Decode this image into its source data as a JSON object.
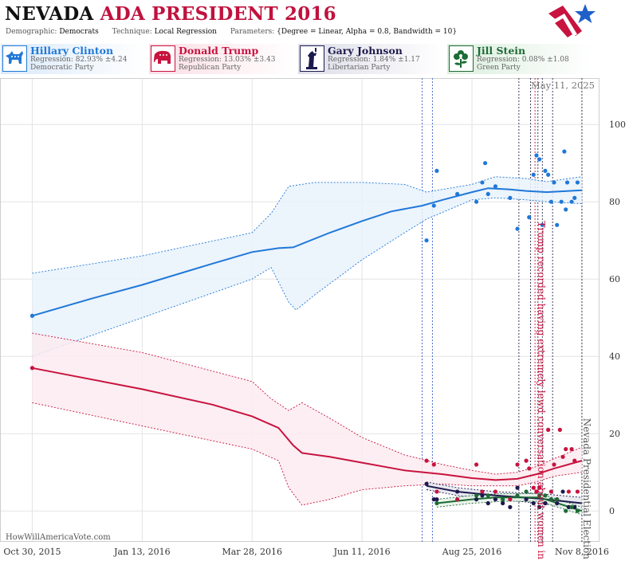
{
  "header": {
    "title_part1": "NEVADA",
    "title_part2": "ADA PRESIDENT 2016",
    "demographic_label": "Demographic:",
    "demographic_value": "Democrats",
    "technique_label": "Technique:",
    "technique_value": "Local Regression",
    "parameters_label": "Parameters:",
    "parameters_value": "{Degree = Linear, Alpha = 0.8, Bandwidth = 10}",
    "logo_icon": "star-flag-logo-icon"
  },
  "candidates": [
    {
      "name": "Hillary Clinton",
      "regression": "Regression: 82.93% ±4.24",
      "party": "Democratic Party",
      "color": "#1f78d8",
      "icon": "donkey-icon"
    },
    {
      "name": "Donald Trump",
      "regression": "Regression: 13.03% ±3.43",
      "party": "Republican Party",
      "color": "#c8133f",
      "icon": "elephant-icon"
    },
    {
      "name": "Gary Johnson",
      "regression": "Regression: 1.84% ±1.17",
      "party": "Libertarian Party",
      "color": "#1c1a4c",
      "icon": "statue-of-liberty-icon"
    },
    {
      "name": "Jill Stein",
      "regression": "Regression: 0.08% ±1.08",
      "party": "Green Party",
      "color": "#1d6b35",
      "icon": "flower-icon"
    }
  ],
  "footer": {
    "watermark": "HowWillAmericaVote.com",
    "date": "May 11, 2025"
  },
  "chart_data": {
    "type": "line",
    "x_type": "date",
    "xlim": [
      "2015-10-08",
      "2016-11-20"
    ],
    "ylim": [
      -8,
      112
    ],
    "y_ticks": [
      0,
      20,
      40,
      60,
      80,
      100
    ],
    "x_ticks": [
      "2015-10-30",
      "2016-01-13",
      "2016-03-28",
      "2016-06-11",
      "2016-08-25",
      "2016-11-08"
    ],
    "x_tick_labels": [
      "Oct 30, 2015",
      "Jan 13, 2016",
      "Mar 28, 2016",
      "Jun 11, 2016",
      "Aug 25, 2016",
      "Nov 8, 2016"
    ],
    "grid": true,
    "series": [
      {
        "name": "Hillary Clinton",
        "color": "#1f78d8",
        "line": [
          [
            "2015-10-30",
            50.5
          ],
          [
            "2015-12-10",
            55
          ],
          [
            "2016-01-13",
            58.5
          ],
          [
            "2016-03-01",
            64
          ],
          [
            "2016-03-28",
            67
          ],
          [
            "2016-04-15",
            68
          ],
          [
            "2016-04-25",
            68.2
          ],
          [
            "2016-05-20",
            72
          ],
          [
            "2016-06-11",
            75
          ],
          [
            "2016-07-01",
            77.5
          ],
          [
            "2016-07-22",
            79
          ],
          [
            "2016-08-05",
            80.5
          ],
          [
            "2016-08-25",
            82.5
          ],
          [
            "2016-09-05",
            83.5
          ],
          [
            "2016-09-20",
            83.2
          ],
          [
            "2016-10-01",
            82.8
          ],
          [
            "2016-10-15",
            82.5
          ],
          [
            "2016-11-08",
            83
          ]
        ],
        "upper": [
          [
            "2015-10-30",
            61.5
          ],
          [
            "2016-01-13",
            66
          ],
          [
            "2016-03-28",
            72
          ],
          [
            "2016-04-10",
            77
          ],
          [
            "2016-04-22",
            84
          ],
          [
            "2016-05-10",
            85
          ],
          [
            "2016-06-11",
            85
          ],
          [
            "2016-07-10",
            84.5
          ],
          [
            "2016-07-25",
            82.5
          ],
          [
            "2016-08-25",
            84.5
          ],
          [
            "2016-09-10",
            86.5
          ],
          [
            "2016-10-01",
            86
          ],
          [
            "2016-10-15",
            85.2
          ],
          [
            "2016-11-08",
            86.5
          ]
        ],
        "lower": [
          [
            "2015-10-30",
            40
          ],
          [
            "2016-01-13",
            50
          ],
          [
            "2016-03-28",
            60
          ],
          [
            "2016-04-10",
            63
          ],
          [
            "2016-04-22",
            54
          ],
          [
            "2016-04-27",
            52
          ],
          [
            "2016-05-10",
            56
          ],
          [
            "2016-06-11",
            65
          ],
          [
            "2016-07-10",
            72
          ],
          [
            "2016-07-25",
            75.5
          ],
          [
            "2016-08-25",
            80.5
          ],
          [
            "2016-09-10",
            81
          ],
          [
            "2016-10-01",
            80.5
          ],
          [
            "2016-10-15",
            80
          ],
          [
            "2016-11-08",
            79.5
          ]
        ],
        "points": [
          [
            "2015-10-30",
            50.5
          ],
          [
            "2016-07-25",
            70
          ],
          [
            "2016-07-30",
            79
          ],
          [
            "2016-08-01",
            88
          ],
          [
            "2016-08-15",
            82
          ],
          [
            "2016-08-28",
            80
          ],
          [
            "2016-09-01",
            85
          ],
          [
            "2016-09-03",
            90
          ],
          [
            "2016-09-05",
            82
          ],
          [
            "2016-09-10",
            84
          ],
          [
            "2016-09-20",
            81
          ],
          [
            "2016-09-25",
            73
          ],
          [
            "2016-10-03",
            76
          ],
          [
            "2016-10-06",
            87
          ],
          [
            "2016-10-08",
            92
          ],
          [
            "2016-10-10",
            91
          ],
          [
            "2016-10-12",
            74
          ],
          [
            "2016-10-14",
            88
          ],
          [
            "2016-10-16",
            87
          ],
          [
            "2016-10-18",
            80
          ],
          [
            "2016-10-20",
            85
          ],
          [
            "2016-10-22",
            74
          ],
          [
            "2016-10-25",
            80
          ],
          [
            "2016-10-27",
            93
          ],
          [
            "2016-10-28",
            78
          ],
          [
            "2016-10-29",
            85
          ],
          [
            "2016-11-01",
            80
          ],
          [
            "2016-11-03",
            81
          ],
          [
            "2016-11-05",
            85
          ]
        ]
      },
      {
        "name": "Donald Trump",
        "color": "#c8133f",
        "line": [
          [
            "2015-10-30",
            37
          ],
          [
            "2015-12-10",
            34
          ],
          [
            "2016-01-13",
            31.5
          ],
          [
            "2016-03-01",
            27.5
          ],
          [
            "2016-03-28",
            24.5
          ],
          [
            "2016-04-15",
            21.5
          ],
          [
            "2016-04-25",
            17
          ],
          [
            "2016-05-01",
            15
          ],
          [
            "2016-05-20",
            14
          ],
          [
            "2016-06-11",
            12.5
          ],
          [
            "2016-07-10",
            10.5
          ],
          [
            "2016-08-05",
            9.5
          ],
          [
            "2016-08-25",
            8.5
          ],
          [
            "2016-09-10",
            8
          ],
          [
            "2016-09-25",
            8.3
          ],
          [
            "2016-10-08",
            9.5
          ],
          [
            "2016-10-20",
            11
          ],
          [
            "2016-11-08",
            13
          ]
        ],
        "upper": [
          [
            "2015-10-30",
            46
          ],
          [
            "2016-01-13",
            41
          ],
          [
            "2016-03-28",
            33.5
          ],
          [
            "2016-04-10",
            29
          ],
          [
            "2016-04-22",
            26
          ],
          [
            "2016-05-01",
            28
          ],
          [
            "2016-05-20",
            24
          ],
          [
            "2016-06-11",
            19
          ],
          [
            "2016-07-10",
            14.5
          ],
          [
            "2016-08-05",
            12
          ],
          [
            "2016-08-25",
            10.5
          ],
          [
            "2016-09-10",
            9.5
          ],
          [
            "2016-09-25",
            10
          ],
          [
            "2016-10-08",
            11.5
          ],
          [
            "2016-10-20",
            13.5
          ],
          [
            "2016-11-08",
            16.5
          ]
        ],
        "lower": [
          [
            "2015-10-30",
            28
          ],
          [
            "2016-01-13",
            22
          ],
          [
            "2016-03-28",
            16
          ],
          [
            "2016-04-15",
            13
          ],
          [
            "2016-04-22",
            6
          ],
          [
            "2016-05-01",
            1.5
          ],
          [
            "2016-05-20",
            3
          ],
          [
            "2016-06-11",
            5.5
          ],
          [
            "2016-07-10",
            6.5
          ],
          [
            "2016-08-05",
            7
          ],
          [
            "2016-08-25",
            6.5
          ],
          [
            "2016-09-10",
            6.5
          ],
          [
            "2016-09-25",
            6.5
          ],
          [
            "2016-10-08",
            7.5
          ],
          [
            "2016-10-20",
            9
          ],
          [
            "2016-11-08",
            10
          ]
        ],
        "points": [
          [
            "2015-10-30",
            37
          ],
          [
            "2016-07-25",
            13
          ],
          [
            "2016-07-30",
            12
          ],
          [
            "2016-08-01",
            5
          ],
          [
            "2016-08-15",
            3
          ],
          [
            "2016-08-28",
            12
          ],
          [
            "2016-09-01",
            5
          ],
          [
            "2016-09-10",
            5
          ],
          [
            "2016-09-20",
            3
          ],
          [
            "2016-09-25",
            12
          ],
          [
            "2016-10-01",
            13
          ],
          [
            "2016-10-03",
            11
          ],
          [
            "2016-10-06",
            6
          ],
          [
            "2016-10-08",
            5
          ],
          [
            "2016-10-10",
            6
          ],
          [
            "2016-10-14",
            2
          ],
          [
            "2016-10-16",
            21
          ],
          [
            "2016-10-18",
            5
          ],
          [
            "2016-10-20",
            12
          ],
          [
            "2016-10-22",
            3
          ],
          [
            "2016-10-24",
            21
          ],
          [
            "2016-10-26",
            14
          ],
          [
            "2016-10-28",
            16
          ],
          [
            "2016-10-30",
            5
          ],
          [
            "2016-11-01",
            16
          ],
          [
            "2016-11-03",
            13
          ],
          [
            "2016-11-05",
            5
          ]
        ]
      },
      {
        "name": "Gary Johnson",
        "color": "#1c1a4c",
        "line": [
          [
            "2016-07-25",
            6.5
          ],
          [
            "2016-08-15",
            5
          ],
          [
            "2016-09-10",
            4
          ],
          [
            "2016-10-10",
            3.2
          ],
          [
            "2016-11-08",
            2
          ]
        ],
        "upper": [
          [
            "2016-07-25",
            7.5
          ],
          [
            "2016-08-15",
            6
          ],
          [
            "2016-09-10",
            5
          ],
          [
            "2016-10-10",
            4.5
          ],
          [
            "2016-11-08",
            3.5
          ]
        ],
        "lower": [
          [
            "2016-07-25",
            5.5
          ],
          [
            "2016-08-15",
            4
          ],
          [
            "2016-09-10",
            3
          ],
          [
            "2016-10-10",
            2
          ],
          [
            "2016-11-08",
            0.5
          ]
        ],
        "points": [
          [
            "2016-07-25",
            7
          ],
          [
            "2016-07-30",
            3
          ],
          [
            "2016-08-01",
            3
          ],
          [
            "2016-08-15",
            5
          ],
          [
            "2016-08-28",
            3
          ],
          [
            "2016-09-01",
            4
          ],
          [
            "2016-09-05",
            2
          ],
          [
            "2016-09-10",
            3
          ],
          [
            "2016-09-15",
            2
          ],
          [
            "2016-09-20",
            1
          ],
          [
            "2016-09-25",
            6
          ],
          [
            "2016-10-01",
            3
          ],
          [
            "2016-10-06",
            2
          ],
          [
            "2016-10-10",
            1
          ],
          [
            "2016-10-14",
            2
          ],
          [
            "2016-10-18",
            3
          ],
          [
            "2016-10-22",
            2
          ],
          [
            "2016-10-26",
            5
          ],
          [
            "2016-10-30",
            1
          ],
          [
            "2016-11-03",
            1
          ]
        ]
      },
      {
        "name": "Jill Stein",
        "color": "#1d6b35",
        "line": [
          [
            "2016-08-01",
            2
          ],
          [
            "2016-08-25",
            3
          ],
          [
            "2016-09-10",
            3.5
          ],
          [
            "2016-10-10",
            3.5
          ],
          [
            "2016-11-08",
            0
          ]
        ],
        "upper": [
          [
            "2016-08-01",
            3
          ],
          [
            "2016-08-25",
            4
          ],
          [
            "2016-09-15",
            4.5
          ],
          [
            "2016-10-10",
            4.5
          ],
          [
            "2016-11-08",
            1
          ]
        ],
        "lower": [
          [
            "2016-08-01",
            1
          ],
          [
            "2016-08-25",
            2
          ],
          [
            "2016-09-15",
            2.5
          ],
          [
            "2016-10-10",
            2.5
          ],
          [
            "2016-11-08",
            -1
          ]
        ],
        "points": [
          [
            "2016-08-01",
            2
          ],
          [
            "2016-08-28",
            4
          ],
          [
            "2016-09-05",
            4
          ],
          [
            "2016-09-15",
            3
          ],
          [
            "2016-09-25",
            4
          ],
          [
            "2016-10-01",
            5
          ],
          [
            "2016-10-10",
            4
          ],
          [
            "2016-10-14",
            4
          ],
          [
            "2016-10-18",
            3
          ],
          [
            "2016-10-22",
            3
          ],
          [
            "2016-10-28",
            0
          ],
          [
            "2016-11-01",
            1
          ],
          [
            "2016-11-05",
            0
          ]
        ]
      }
    ],
    "vlines_blue": [
      "2016-07-22",
      "2016-07-29"
    ],
    "vlines_dark": [
      "2016-09-26",
      "2016-10-04",
      "2016-10-09",
      "2016-10-12",
      "2016-10-19",
      "2016-11-08"
    ],
    "annotations": [
      {
        "text": "Trump recorded having extremely lewd conversation about women in 2005",
        "date": "2016-10-07",
        "color": "#c8133f"
      },
      {
        "text": "Nevada Presidential Election",
        "date": "2016-11-08",
        "color": "#555555"
      }
    ]
  }
}
